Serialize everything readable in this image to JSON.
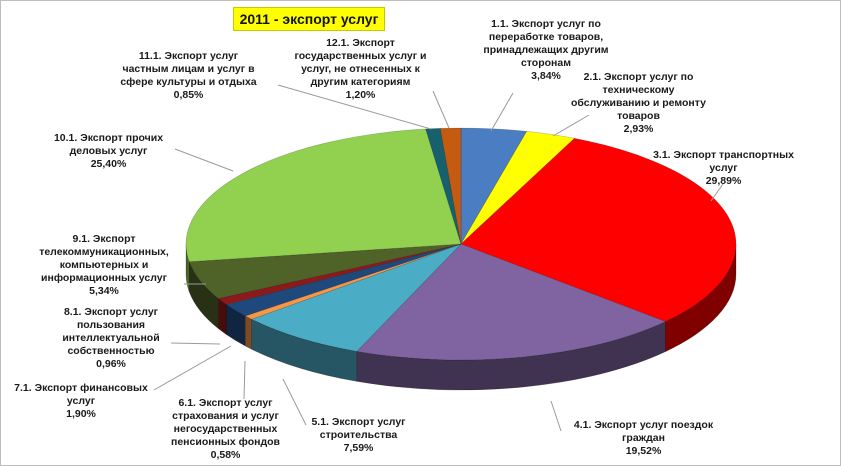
{
  "chart_data": {
    "type": "pie",
    "title": "2011 - экспорт  услуг",
    "slices": [
      {
        "label_lines": [
          "1.1. Экспорт услуг по",
          "переработке товаров,",
          "принадлежащих другим",
          "сторонам"
        ],
        "value": 3.84,
        "value_text": "3,84%",
        "color": "#4a7dc2"
      },
      {
        "label_lines": [
          "2.1. Экспорт услуг по",
          "техническому",
          "обслуживанию и ремонту",
          "товаров"
        ],
        "value": 2.93,
        "value_text": "2,93%",
        "color": "#ffff00"
      },
      {
        "label_lines": [
          "3.1. Экспорт транспортных",
          "услуг"
        ],
        "value": 29.89,
        "value_text": "29,89%",
        "color": "#ff0000"
      },
      {
        "label_lines": [
          "4.1. Экспорт услуг поездок",
          "граждан"
        ],
        "value": 19.52,
        "value_text": "19,52%",
        "color": "#8064a2"
      },
      {
        "label_lines": [
          "5.1. Экспорт услуг",
          "строительства"
        ],
        "value": 7.59,
        "value_text": "7,59%",
        "color": "#4bacc6"
      },
      {
        "label_lines": [
          "6.1. Экспорт услуг",
          "страхования и услуг",
          "негосударственных",
          "пенсионных фондов"
        ],
        "value": 0.58,
        "value_text": "0,58%",
        "color": "#f79646"
      },
      {
        "label_lines": [
          "7.1. Экспорт финансовых",
          "услуг"
        ],
        "value": 1.9,
        "value_text": "1,90%",
        "color": "#1f497d"
      },
      {
        "label_lines": [
          "8.1. Экспорт услуг",
          "пользования",
          "интеллектуальной",
          "собственностью"
        ],
        "value": 0.96,
        "value_text": "0,96%",
        "color": "#8b1a1a"
      },
      {
        "label_lines": [
          "9.1. Экспорт",
          "телекоммуникационных,",
          "компьютерных и",
          "информационных услуг"
        ],
        "value": 5.34,
        "value_text": "5,34%",
        "color": "#4f6228"
      },
      {
        "label_lines": [
          "10.1. Экспорт прочих",
          "деловых услуг"
        ],
        "value": 25.4,
        "value_text": "25,40%",
        "color": "#92d050"
      },
      {
        "label_lines": [
          "11.1. Экспорт услуг",
          "частным лицам и услуг в",
          "сфере культуры и отдыха"
        ],
        "value": 0.85,
        "value_text": "0,85%",
        "color": "#17606e"
      },
      {
        "label_lines": [
          "12.1. Экспорт",
          "государственных услуг и",
          "услуг, не отнесенных к",
          "другим категориям"
        ],
        "value": 1.2,
        "value_text": "1,20%",
        "color": "#c55a11"
      }
    ]
  }
}
